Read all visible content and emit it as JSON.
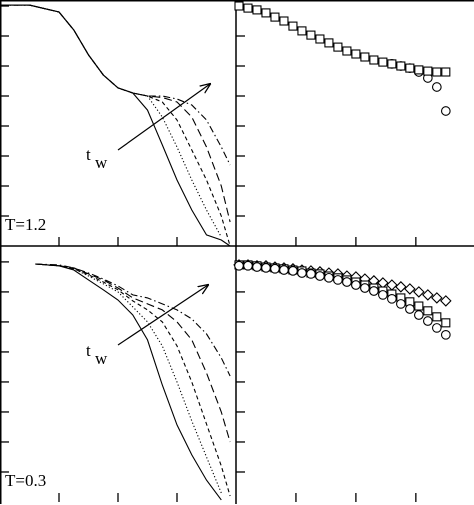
{
  "chart_data": [
    {
      "type": "line",
      "label": "T=1.2",
      "annotation": {
        "text": "t",
        "sub": "w"
      },
      "xlim": [
        0,
        4
      ],
      "ylim": [
        0,
        8.2
      ],
      "xticks": [
        1,
        2,
        3
      ],
      "yticks": [
        1,
        2,
        3,
        4,
        5,
        6,
        7,
        8
      ],
      "color": "#000000",
      "x": [
        0,
        0.5,
        1,
        1.25,
        1.5,
        1.75,
        2,
        2.25,
        2.5,
        2.75,
        3,
        3.25,
        3.5,
        3.75,
        3.9
      ],
      "series": [
        {
          "dash": "solid",
          "values": [
            8.03,
            8.03,
            7.8,
            7.2,
            6.37,
            5.7,
            5.27,
            5.1,
            4.53,
            3.37,
            2.2,
            1.2,
            0.37,
            0.2,
            0
          ]
        },
        {
          "dash": "dotted",
          "values": [
            8.03,
            8.03,
            7.8,
            7.2,
            6.37,
            5.7,
            5.27,
            5.1,
            5.0,
            4.3,
            3.3,
            2.2,
            1.2,
            0.3,
            null
          ]
        },
        {
          "dash": "dashed-short",
          "values": [
            8.03,
            8.03,
            7.8,
            7.2,
            6.37,
            5.7,
            5.27,
            5.1,
            5.0,
            4.8,
            4.2,
            3.2,
            2.2,
            1.0,
            0
          ]
        },
        {
          "dash": "dashed",
          "values": [
            8.03,
            8.03,
            7.8,
            7.2,
            6.37,
            5.7,
            5.27,
            5.1,
            5.0,
            4.95,
            4.8,
            4.3,
            3.3,
            2.0,
            0.8
          ]
        },
        {
          "dash": "dash-dot",
          "values": [
            8.03,
            8.03,
            7.8,
            7.2,
            6.37,
            5.7,
            5.27,
            5.1,
            5.0,
            5.0,
            4.9,
            4.7,
            4.2,
            3.3,
            2.7
          ]
        }
      ]
    },
    {
      "type": "scatter",
      "xlim": [
        0,
        3.97
      ],
      "ylim": [
        0,
        8.2
      ],
      "xticks": [
        1,
        2,
        3
      ],
      "yticks": [
        1,
        2,
        3,
        4,
        5,
        6,
        7,
        8
      ],
      "color": "#000000",
      "x": [
        0.05,
        0.2,
        0.35,
        0.5,
        0.65,
        0.8,
        0.95,
        1.1,
        1.25,
        1.4,
        1.55,
        1.7,
        1.85,
        2.0,
        2.15,
        2.3,
        2.45,
        2.6,
        2.75,
        2.9,
        3.05,
        3.2,
        3.35,
        3.5
      ],
      "series": [
        {
          "marker": "circle",
          "values": [
            null,
            null,
            null,
            null,
            null,
            null,
            null,
            null,
            null,
            null,
            null,
            null,
            null,
            null,
            null,
            null,
            null,
            6.07,
            6.0,
            5.93,
            5.8,
            5.6,
            5.3,
            4.5
          ]
        },
        {
          "marker": "square",
          "values": [
            8.0,
            7.93,
            7.87,
            7.77,
            7.63,
            7.5,
            7.33,
            7.17,
            7.03,
            6.9,
            6.77,
            6.63,
            6.5,
            6.4,
            6.3,
            6.2,
            6.13,
            6.07,
            6.0,
            5.93,
            5.87,
            5.83,
            5.8,
            5.8
          ]
        }
      ]
    },
    {
      "type": "line",
      "label": "T=0.3",
      "annotation": {
        "text": "t",
        "sub": "w"
      },
      "xlim": [
        0,
        4
      ],
      "ylim": [
        0,
        8.53
      ],
      "xticks": [
        1,
        2,
        3
      ],
      "yticks": [
        1,
        2,
        3,
        4,
        5,
        6,
        7,
        8
      ],
      "color": "#000000",
      "x": [
        0.6,
        1,
        1.25,
        1.5,
        1.75,
        2,
        2.25,
        2.5,
        2.75,
        3,
        3.25,
        3.5,
        3.75,
        3.9
      ],
      "series": [
        {
          "dash": "solid",
          "values": [
            7.93,
            7.87,
            7.73,
            7.4,
            7.07,
            6.73,
            6.23,
            5.4,
            3.9,
            2.57,
            1.57,
            0.73,
            0.07,
            null
          ]
        },
        {
          "dash": "dotted",
          "values": [
            7.93,
            7.87,
            7.77,
            7.53,
            7.27,
            7.0,
            6.5,
            6.0,
            5.2,
            4.0,
            2.7,
            1.5,
            0.3,
            null
          ]
        },
        {
          "dash": "dashed-short",
          "values": [
            7.93,
            7.87,
            7.77,
            7.57,
            7.33,
            7.07,
            6.7,
            6.4,
            6.0,
            5.2,
            4.0,
            2.6,
            1.2,
            0.2
          ]
        },
        {
          "dash": "dashed",
          "values": [
            7.93,
            7.87,
            7.8,
            7.6,
            7.4,
            7.13,
            6.8,
            6.6,
            6.4,
            6.0,
            5.4,
            4.3,
            3.0,
            2.0
          ]
        },
        {
          "dash": "dash-dot",
          "values": [
            7.93,
            7.9,
            7.8,
            7.63,
            7.43,
            7.2,
            6.9,
            6.8,
            6.6,
            6.4,
            6.1,
            5.6,
            4.8,
            4.2
          ]
        }
      ]
    },
    {
      "type": "scatter",
      "xlim": [
        0,
        3.97
      ],
      "ylim": [
        0,
        8.53
      ],
      "xticks": [
        1,
        2,
        3
      ],
      "yticks": [
        1,
        2,
        3,
        4,
        5,
        6,
        7,
        8
      ],
      "color": "#000000",
      "x": [
        0.05,
        0.2,
        0.35,
        0.5,
        0.65,
        0.8,
        0.95,
        1.1,
        1.25,
        1.4,
        1.55,
        1.7,
        1.85,
        2.0,
        2.15,
        2.3,
        2.45,
        2.6,
        2.75,
        2.9,
        3.05,
        3.2,
        3.35,
        3.5
      ],
      "series": [
        {
          "marker": "diamond",
          "values": [
            7.9,
            7.9,
            7.87,
            7.87,
            7.83,
            7.8,
            7.77,
            7.73,
            7.7,
            7.67,
            7.63,
            7.6,
            7.53,
            7.5,
            7.43,
            7.37,
            7.3,
            7.23,
            7.17,
            7.1,
            7.0,
            6.9,
            6.8,
            6.7
          ]
        },
        {
          "marker": "square",
          "values": [
            7.9,
            7.9,
            7.87,
            7.83,
            7.8,
            7.77,
            7.73,
            7.7,
            7.63,
            7.6,
            7.53,
            7.47,
            7.4,
            7.33,
            7.23,
            7.13,
            7.03,
            6.93,
            6.8,
            6.67,
            6.53,
            6.37,
            6.17,
            5.97
          ]
        },
        {
          "marker": "circle",
          "values": [
            7.87,
            7.87,
            7.83,
            7.8,
            7.77,
            7.73,
            7.7,
            7.63,
            7.6,
            7.53,
            7.47,
            7.4,
            7.33,
            7.23,
            7.13,
            7.03,
            6.9,
            6.77,
            6.6,
            6.43,
            6.23,
            6.03,
            5.8,
            5.57
          ]
        }
      ]
    }
  ]
}
